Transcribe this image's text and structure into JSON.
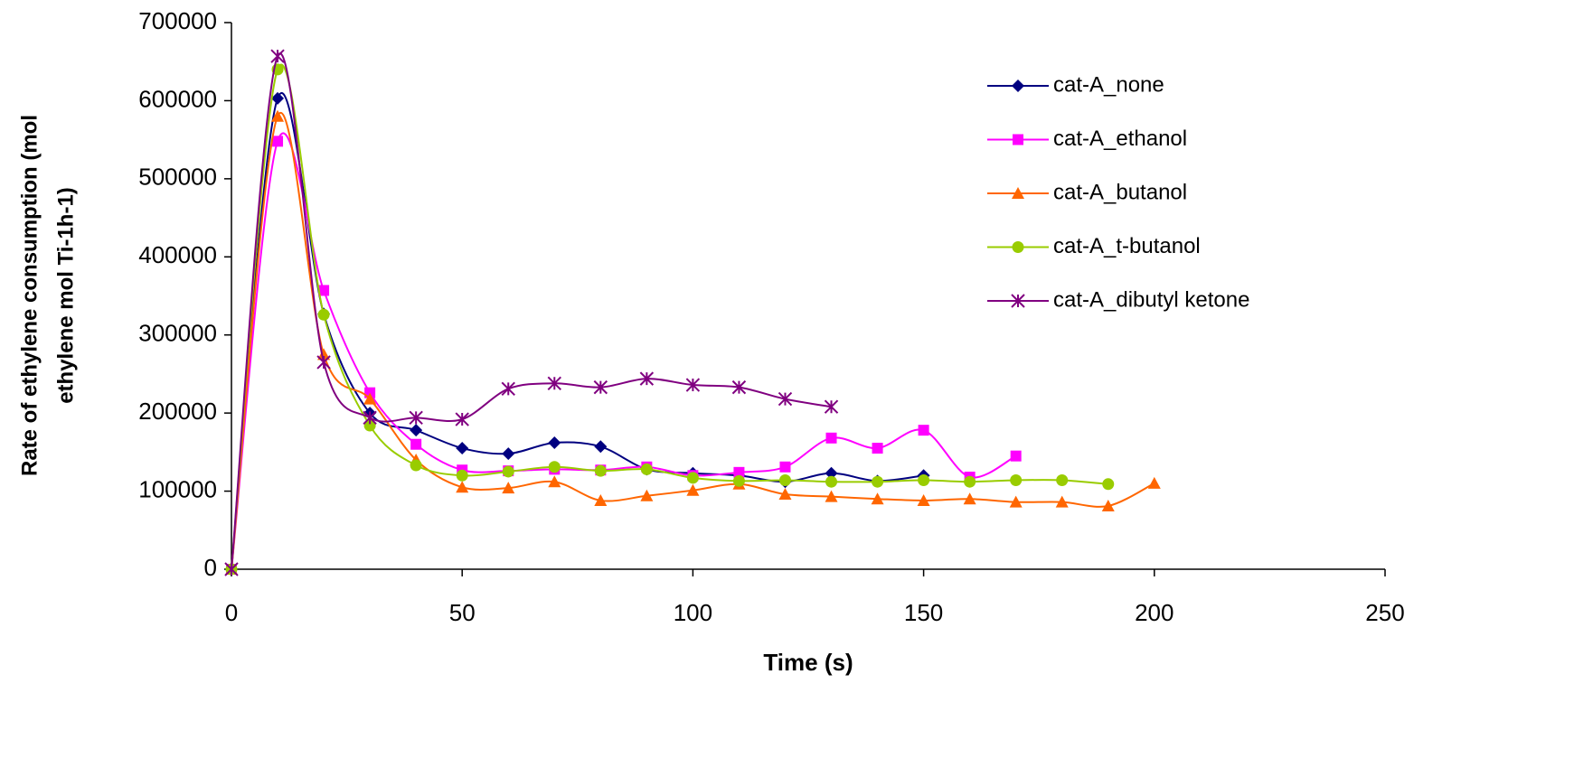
{
  "chart_data": {
    "type": "line",
    "xlabel": "Time (s)",
    "ylabel": [
      "Rate of ethylene consumption  (mol",
      "ethylene mol Ti-1h-1)"
    ],
    "x": [
      0,
      10,
      20,
      30,
      40,
      50,
      60,
      70,
      80,
      90,
      100,
      110,
      120,
      130,
      140,
      150,
      160,
      170,
      180,
      190,
      200
    ],
    "series": [
      {
        "name": "cat-A_none",
        "color": "#000080",
        "marker": "diamond",
        "values": [
          0,
          603000,
          327000,
          200000,
          178000,
          155000,
          148000,
          162000,
          157000,
          128000,
          123000,
          120000,
          112000,
          123000,
          113000,
          120000,
          null,
          null,
          null,
          null,
          null
        ]
      },
      {
        "name": "cat-A_ethanol",
        "color": "#ff00ff",
        "marker": "square",
        "values": [
          0,
          548000,
          357000,
          226000,
          160000,
          127000,
          126000,
          128000,
          127000,
          131000,
          120000,
          124000,
          131000,
          168000,
          155000,
          178000,
          118000,
          145000,
          null,
          null,
          null
        ]
      },
      {
        "name": "cat-A_butanol",
        "color": "#ff6600",
        "marker": "triangle",
        "values": [
          0,
          580000,
          275000,
          218000,
          140000,
          105000,
          104000,
          112000,
          88000,
          94000,
          101000,
          109000,
          96000,
          93000,
          90000,
          88000,
          90000,
          86000,
          86000,
          81000,
          110000
        ]
      },
      {
        "name": "cat-A_t-butanol",
        "color": "#99cc00",
        "marker": "circle",
        "values": [
          0,
          640000,
          326000,
          184000,
          133000,
          120000,
          125000,
          131000,
          126000,
          128000,
          117000,
          113000,
          114000,
          112000,
          112000,
          114000,
          112000,
          114000,
          114000,
          109000,
          null
        ]
      },
      {
        "name": "cat-A_dibutyl ketone",
        "color": "#800080",
        "marker": "asterisk",
        "values": [
          0,
          657000,
          265000,
          194000,
          194000,
          192000,
          231000,
          238000,
          233000,
          244000,
          236000,
          233000,
          218000,
          208000,
          null,
          null,
          null,
          null,
          null,
          null,
          null
        ]
      }
    ],
    "xlim": [
      0,
      250
    ],
    "xticks": [
      0,
      50,
      100,
      150,
      200,
      250
    ],
    "ylim": [
      0,
      700000
    ],
    "yticks": [
      0,
      100000,
      200000,
      300000,
      400000,
      500000,
      600000,
      700000
    ],
    "grid": false,
    "legend": "upper right"
  }
}
